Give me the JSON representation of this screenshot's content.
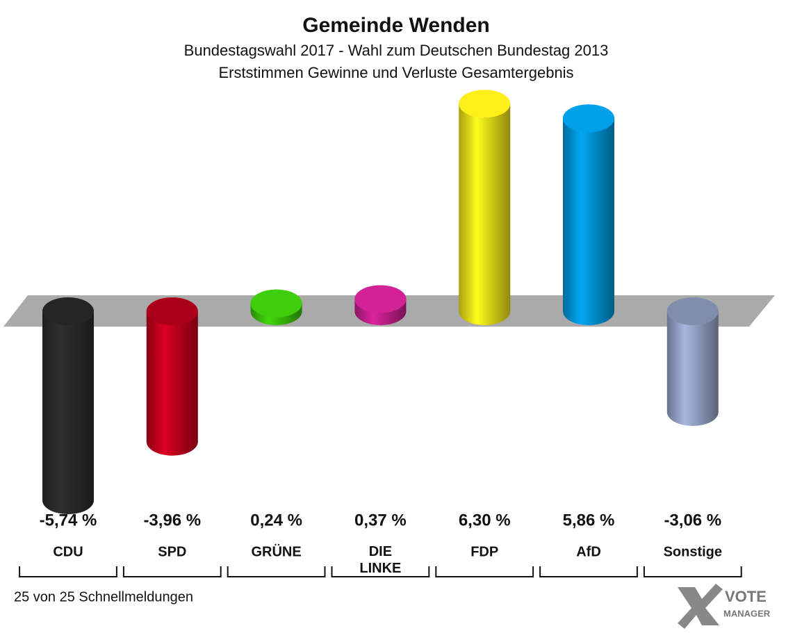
{
  "chart_data": {
    "type": "bar",
    "title": "Gemeinde Wenden",
    "subtitle": [
      "Bundestagswahl 2017 - Wahl zum Deutschen Bundestag 2013",
      "Erststimmen Gewinne und Verluste Gesamtergebnis"
    ],
    "categories": [
      "CDU",
      "SPD",
      "GRÜNE",
      "DIE LINKE",
      "FDP",
      "AfD",
      "Sonstige"
    ],
    "values": [
      -5.74,
      -3.96,
      0.24,
      0.37,
      6.3,
      5.86,
      -3.06
    ],
    "value_labels": [
      "-5,74 %",
      "-3,96 %",
      "0,24 %",
      "0,37 %",
      "6,30 %",
      "5,86 %",
      "-3,06 %"
    ],
    "colors": [
      "#2b2b2b",
      "#c8001e",
      "#3cc40a",
      "#c8208f",
      "#f2e41a",
      "#0099dd",
      "#98a6cc"
    ],
    "footer": "25 von 25 Schnellmeldungen",
    "logo": [
      "VOTE",
      "MANAGER"
    ]
  }
}
